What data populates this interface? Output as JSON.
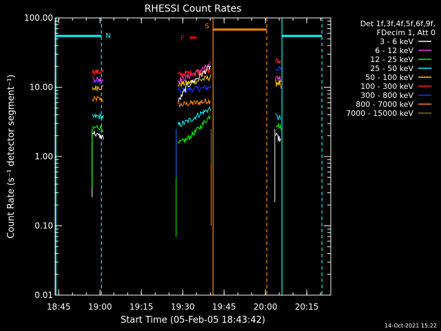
{
  "chart_data": {
    "type": "line",
    "title": "RHESSI Count Rates",
    "xlabel": "Start Time (05-Feb-05 18:43:42)",
    "ylabel": "Count Rate (s⁻¹ detector segment⁻¹)",
    "yscale": "log",
    "ylim": [
      0.01,
      100
    ],
    "x_unit": "minutes after 18:43:42",
    "xlim": [
      0,
      100
    ],
    "x_ticks": [
      {
        "label": "18:45",
        "x": 1.3
      },
      {
        "label": "19:00",
        "x": 16.3
      },
      {
        "label": "19:15",
        "x": 31.3
      },
      {
        "label": "19:30",
        "x": 46.3
      },
      {
        "label": "19:45",
        "x": 61.3
      },
      {
        "label": "20:00",
        "x": 76.3
      },
      {
        "label": "20:15",
        "x": 91.3
      }
    ],
    "y_ticks": [
      {
        "label": "0.01",
        "value": 0.01
      },
      {
        "label": "0.10",
        "value": 0.1
      },
      {
        "label": "1.00",
        "value": 1
      },
      {
        "label": "10.00",
        "value": 10
      },
      {
        "label": "100.00",
        "value": 100
      }
    ],
    "legend": {
      "position": "top-right",
      "header": [
        "Det 1f,3f,4f,5f,6f,9f,",
        "FDecim 1, Att 0"
      ],
      "entries": [
        {
          "label": "3 - 6 keV",
          "color": "#ffffff"
        },
        {
          "label": "6 - 12 keV",
          "color": "#ff3bd6"
        },
        {
          "label": "12 - 25 keV",
          "color": "#00ff00"
        },
        {
          "label": "25 - 50 keV",
          "color": "#00ffff"
        },
        {
          "label": "50 - 100 keV",
          "color": "#ffd000"
        },
        {
          "label": "100 - 300 keV",
          "color": "#ff2020"
        },
        {
          "label": "300 - 800 keV",
          "color": "#1a33ff"
        },
        {
          "label": "800 - 7000 keV",
          "color": "#ff8a00"
        },
        {
          "label": "7000 - 15000 keV",
          "color": "#7a7a00"
        }
      ]
    },
    "data_gaps_with_counts": [
      {
        "start": 13.3,
        "end": 17.8
      },
      {
        "start": 43.8,
        "end": 56.8
      },
      {
        "start": 79.6,
        "end": 82.3
      }
    ],
    "series": [
      {
        "name": "3 - 6 keV",
        "color": "#ffffff",
        "values": [
          [
            13.5,
            2.3
          ],
          [
            15.5,
            2.0
          ],
          [
            17.5,
            1.9
          ],
          [
            44.5,
            6.0
          ],
          [
            48.0,
            10.5
          ],
          [
            52.0,
            14.0
          ],
          [
            56.5,
            20.0
          ],
          [
            80.0,
            2.0
          ],
          [
            82.0,
            1.7
          ]
        ]
      },
      {
        "name": "6 - 12 keV",
        "color": "#ff3bd6",
        "values": [
          [
            13.5,
            13.5
          ],
          [
            15.5,
            13.0
          ],
          [
            17.5,
            13.0
          ],
          [
            44.5,
            12.5
          ],
          [
            48.0,
            14.0
          ],
          [
            52.0,
            17.0
          ],
          [
            56.5,
            21.0
          ],
          [
            80.0,
            14.0
          ],
          [
            82.0,
            13.5
          ]
        ]
      },
      {
        "name": "12 - 25 keV",
        "color": "#00ff00",
        "values": [
          [
            13.5,
            2.5
          ],
          [
            15.5,
            2.7
          ],
          [
            17.5,
            2.5
          ],
          [
            44.5,
            1.5
          ],
          [
            48.0,
            1.8
          ],
          [
            52.0,
            2.5
          ],
          [
            56.5,
            4.0
          ],
          [
            80.0,
            3.0
          ],
          [
            82.0,
            2.6
          ]
        ]
      },
      {
        "name": "25 - 50 keV",
        "color": "#00ffff",
        "values": [
          [
            13.5,
            3.7
          ],
          [
            15.5,
            3.8
          ],
          [
            17.5,
            3.7
          ],
          [
            44.5,
            2.8
          ],
          [
            48.0,
            3.2
          ],
          [
            52.0,
            4.0
          ],
          [
            56.5,
            5.0
          ],
          [
            80.0,
            3.8
          ],
          [
            82.0,
            3.5
          ]
        ]
      },
      {
        "name": "50 - 100 keV",
        "color": "#ffd000",
        "values": [
          [
            13.5,
            9.5
          ],
          [
            15.5,
            10.0
          ],
          [
            17.5,
            10.0
          ],
          [
            44.5,
            11.0
          ],
          [
            48.0,
            11.5
          ],
          [
            52.0,
            12.5
          ],
          [
            56.5,
            14.0
          ],
          [
            80.0,
            12.0
          ],
          [
            82.0,
            11.5
          ]
        ]
      },
      {
        "name": "100 - 300 keV",
        "color": "#ff2020",
        "values": [
          [
            13.5,
            17.0
          ],
          [
            15.5,
            16.5
          ],
          [
            17.5,
            17.0
          ],
          [
            44.5,
            15.0
          ],
          [
            48.0,
            16.0
          ],
          [
            52.0,
            16.5
          ],
          [
            56.5,
            17.5
          ],
          [
            80.0,
            24.0
          ],
          [
            82.0,
            23.0
          ]
        ]
      },
      {
        "name": "300 - 800 keV",
        "color": "#1a33ff",
        "values": [
          [
            13.5,
            12.0
          ],
          [
            15.5,
            12.0
          ],
          [
            17.5,
            12.5
          ],
          [
            44.5,
            9.0
          ],
          [
            48.0,
            9.3
          ],
          [
            52.0,
            9.5
          ],
          [
            56.5,
            10.0
          ],
          [
            80.0,
            19.0
          ],
          [
            82.0,
            18.0
          ]
        ]
      },
      {
        "name": "800 - 7000 keV",
        "color": "#ff8a00",
        "values": [
          [
            13.5,
            6.5
          ],
          [
            15.5,
            6.8
          ],
          [
            17.5,
            6.6
          ],
          [
            44.5,
            5.5
          ],
          [
            48.0,
            5.8
          ],
          [
            52.0,
            6.0
          ],
          [
            56.5,
            6.5
          ],
          [
            80.0,
            11.0
          ],
          [
            82.0,
            10.5
          ]
        ]
      }
    ],
    "attenuator_levels": [
      {
        "name": "N",
        "label": "N",
        "color": "#00ffff",
        "value": 55,
        "ranges": [
          [
            0.3,
            16.8
          ],
          [
            82.3,
            96.8
          ]
        ]
      },
      {
        "name": "F",
        "label": "F",
        "color": "#ff0000",
        "value": 52,
        "ranges": [
          [
            48.8,
            51.3
          ]
        ]
      },
      {
        "name": "S",
        "label": "S",
        "color": "#ff8a00",
        "value": 68,
        "ranges": [
          [
            57.3,
            76.8
          ]
        ]
      }
    ],
    "vertical_markers": [
      {
        "x": 0.3,
        "color": "#00ffff",
        "style": "solid"
      },
      {
        "x": 16.8,
        "color": "#00ffff",
        "style": "dashed"
      },
      {
        "x": 57.3,
        "color": "#ff8a00",
        "style": "solid"
      },
      {
        "x": 76.8,
        "color": "#ff8a00",
        "style": "dashed"
      },
      {
        "x": 82.3,
        "color": "#00ffff",
        "style": "solid"
      },
      {
        "x": 96.8,
        "color": "#00ffff",
        "style": "dashed"
      }
    ],
    "footer_date": "14-Oct-2021 15:22"
  }
}
